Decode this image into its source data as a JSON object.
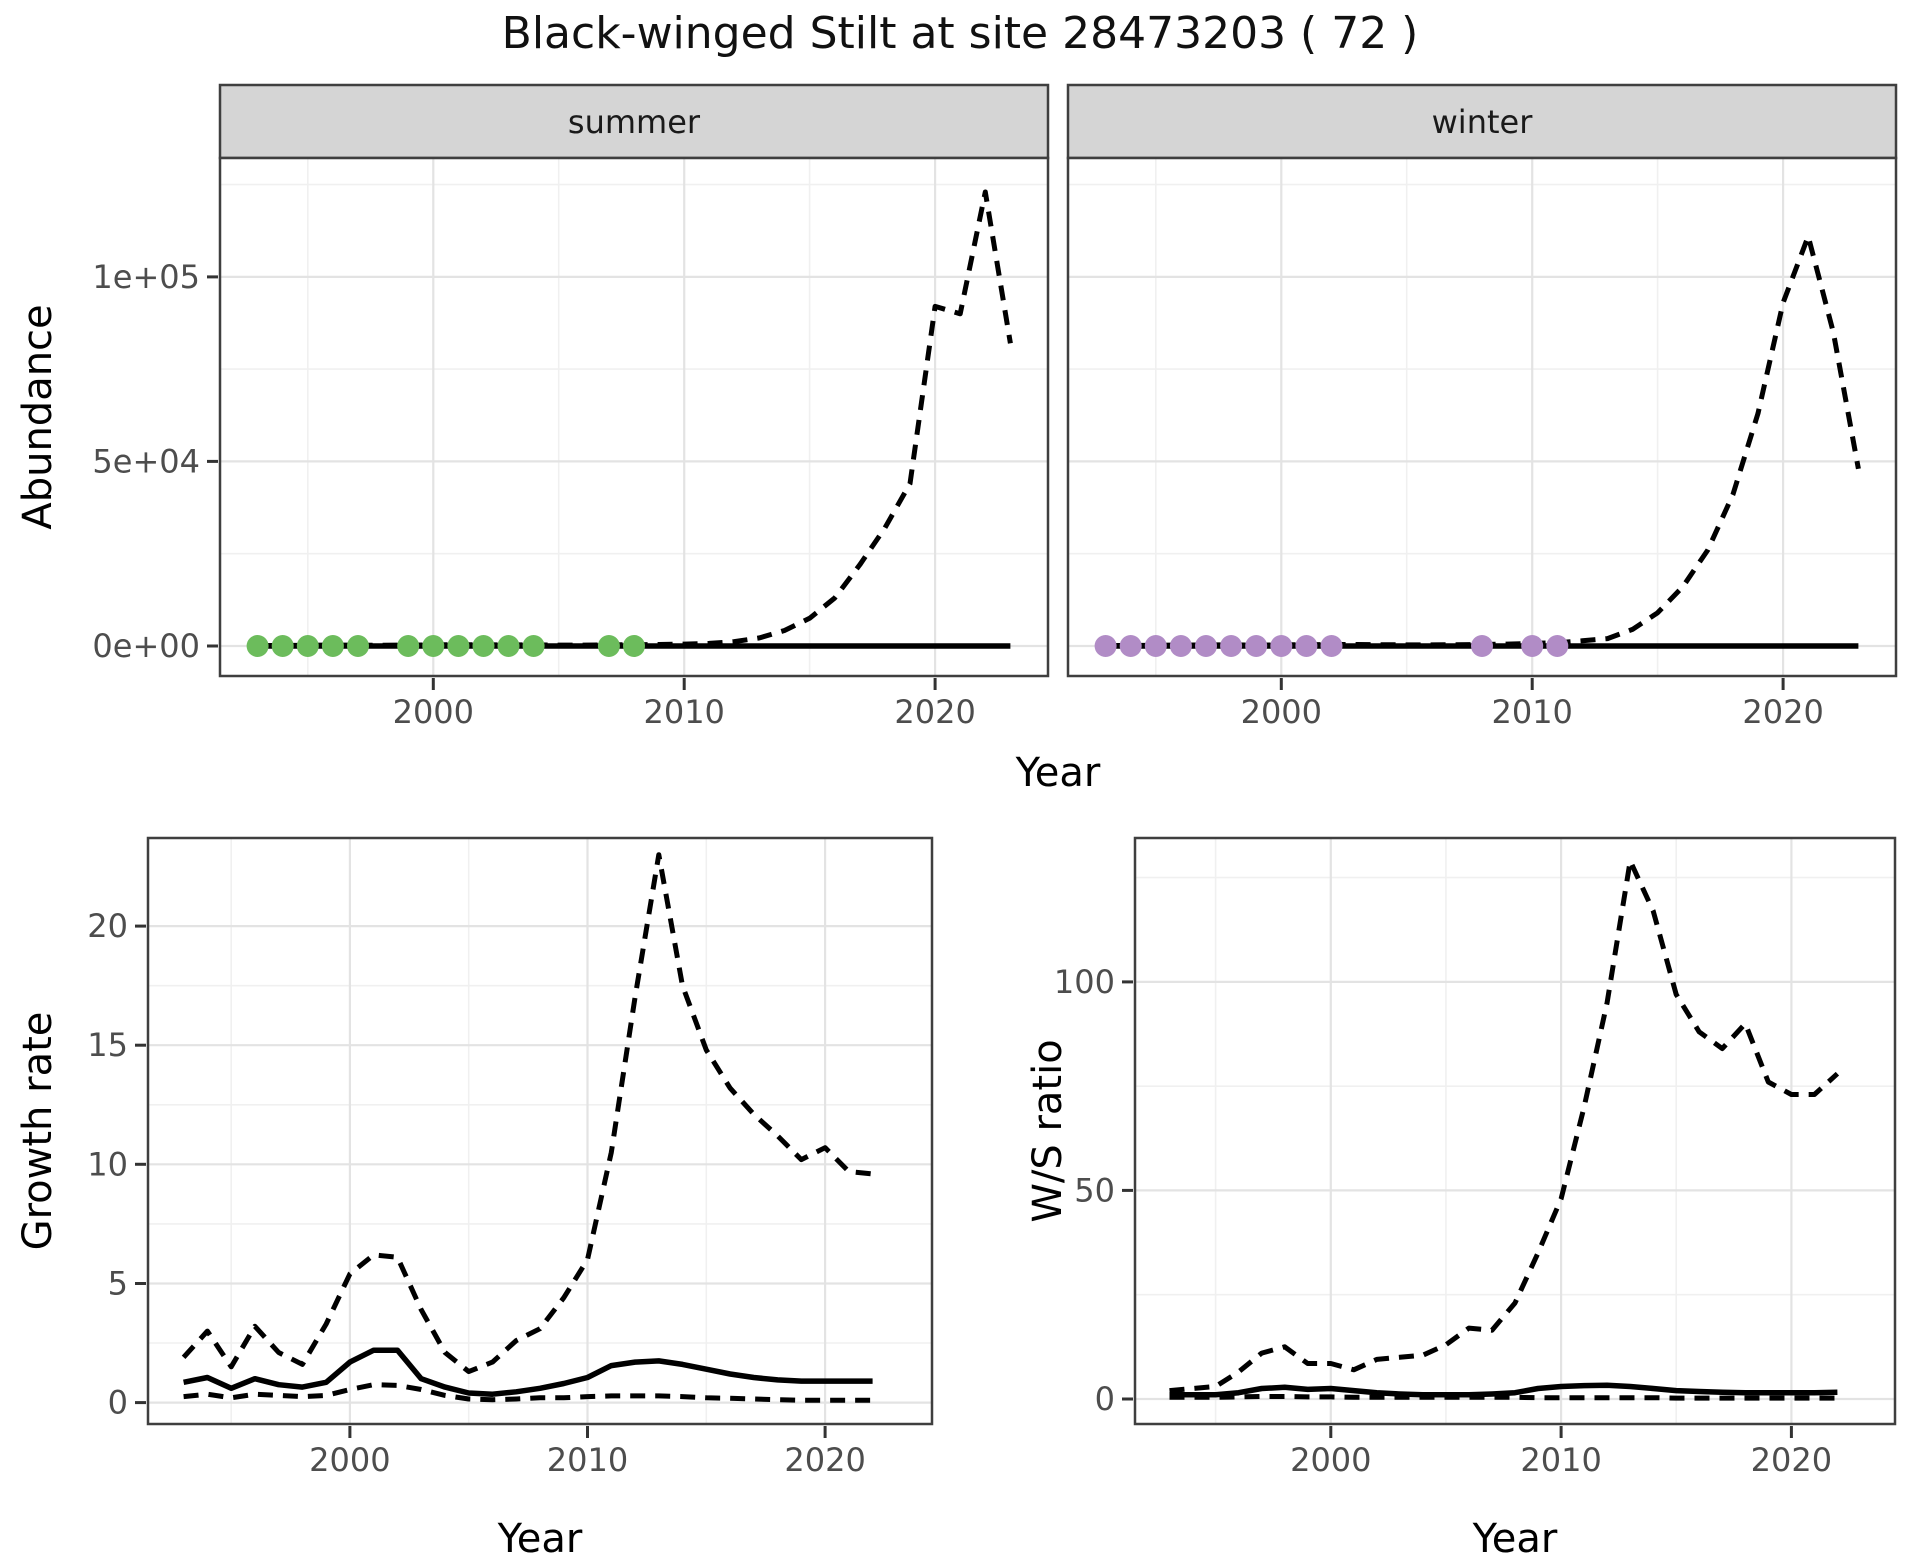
{
  "title": "Black-winged Stilt at site 28473203 ( 72 )",
  "chart_data": {
    "type": "line",
    "title": "Black-winged Stilt at site 28473203 ( 72 )",
    "xlabel": "Year",
    "facets": [
      "summer",
      "winter"
    ],
    "legend": "none",
    "grid": "on",
    "style": {
      "summer_point": "#6cbc5c",
      "winter_point": "#b18cc6",
      "line": "#000000",
      "strip_bg": "#d5d5d5",
      "panel_border": "#3f3f3f",
      "grid_major": "#e3e3e3",
      "grid_minor": "#f0f0f0",
      "tick_mark": "#333333",
      "tick_text": "#4d4d4d"
    },
    "panels": [
      {
        "id": "abundance-summer",
        "facet_label": "summer",
        "ylabel": "Abundance",
        "xlabel": "Year",
        "xlim": [
          1991.5,
          2024.5
        ],
        "ylim": [
          -8130,
          132200
        ],
        "xticks": {
          "major": [
            2000,
            2010,
            2020
          ],
          "labels": [
            "2000",
            "2010",
            "2020"
          ],
          "minor": [
            1995,
            2005,
            2015
          ]
        },
        "yticks": {
          "major": [
            0,
            50000,
            100000
          ],
          "labels": [
            "0e+00",
            "5e+04",
            "1e+05"
          ],
          "minor": [
            25000,
            75000,
            125000
          ]
        },
        "series": [
          {
            "name": "estimate",
            "style": "solid",
            "x": [
              1993,
              1994,
              1995,
              1996,
              1997,
              1998,
              1999,
              2000,
              2001,
              2002,
              2003,
              2004,
              2005,
              2006,
              2007,
              2008,
              2009,
              2010,
              2011,
              2012,
              2013,
              2014,
              2015,
              2016,
              2017,
              2018,
              2019,
              2020,
              2021,
              2022,
              2023
            ],
            "y": [
              0,
              0,
              0,
              0,
              0,
              0,
              0,
              0,
              0,
              0,
              0,
              0,
              0,
              0,
              0,
              0,
              0,
              0,
              0,
              0,
              0,
              0,
              0,
              0,
              0,
              0,
              0,
              0,
              0,
              0,
              0
            ]
          },
          {
            "name": "upper_ci",
            "style": "dashed",
            "x": [
              1993,
              1994,
              1995,
              1996,
              1997,
              1998,
              1999,
              2000,
              2001,
              2002,
              2003,
              2004,
              2005,
              2006,
              2007,
              2008,
              2009,
              2010,
              2011,
              2012,
              2013,
              2014,
              2015,
              2016,
              2017,
              2018,
              2019,
              2020,
              2021,
              2022,
              2023
            ],
            "y": [
              100,
              150,
              200,
              250,
              250,
              200,
              250,
              300,
              350,
              350,
              300,
              300,
              250,
              250,
              300,
              350,
              400,
              500,
              700,
              1200,
              2200,
              4200,
              7500,
              13000,
              22000,
              32000,
              44000,
              92000,
              90000,
              123000,
              82000
            ]
          }
        ],
        "points": {
          "name": "observed-count",
          "color": "#6cbc5c",
          "x": [
            1993,
            1994,
            1995,
            1996,
            1997,
            1999,
            2000,
            2001,
            2002,
            2003,
            2004,
            2007,
            2008
          ],
          "y": [
            0,
            0,
            0,
            0,
            0,
            0,
            0,
            0,
            0,
            0,
            0,
            0,
            0
          ]
        }
      },
      {
        "id": "abundance-winter",
        "facet_label": "winter",
        "ylabel": "",
        "xlabel": "Year",
        "xlim": [
          1991.5,
          2024.5
        ],
        "ylim": [
          -8130,
          132200
        ],
        "xticks": {
          "major": [
            2000,
            2010,
            2020
          ],
          "labels": [
            "2000",
            "2010",
            "2020"
          ],
          "minor": [
            1995,
            2005,
            2015
          ]
        },
        "yticks": {
          "major": [
            0,
            50000,
            100000
          ],
          "labels": [],
          "minor": [
            25000,
            75000,
            125000
          ]
        },
        "series": [
          {
            "name": "estimate",
            "style": "solid",
            "x": [
              1993,
              1994,
              1995,
              1996,
              1997,
              1998,
              1999,
              2000,
              2001,
              2002,
              2003,
              2004,
              2005,
              2006,
              2007,
              2008,
              2009,
              2010,
              2011,
              2012,
              2013,
              2014,
              2015,
              2016,
              2017,
              2018,
              2019,
              2020,
              2021,
              2022,
              2023
            ],
            "y": [
              0,
              0,
              0,
              0,
              0,
              0,
              0,
              0,
              0,
              0,
              0,
              0,
              0,
              0,
              0,
              0,
              0,
              0,
              0,
              0,
              0,
              0,
              0,
              0,
              0,
              0,
              0,
              0,
              0,
              0,
              0
            ]
          },
          {
            "name": "upper_ci",
            "style": "dashed",
            "x": [
              1993,
              1994,
              1995,
              1996,
              1997,
              1998,
              1999,
              2000,
              2001,
              2002,
              2003,
              2004,
              2005,
              2006,
              2007,
              2008,
              2009,
              2010,
              2011,
              2012,
              2013,
              2014,
              2015,
              2016,
              2017,
              2018,
              2019,
              2020,
              2021,
              2022,
              2023
            ],
            "y": [
              100,
              150,
              200,
              250,
              300,
              300,
              250,
              300,
              350,
              400,
              400,
              350,
              300,
              300,
              350,
              400,
              500,
              700,
              900,
              1400,
              2000,
              4500,
              9000,
              16000,
              26000,
              41000,
              63000,
              93000,
              111000,
              85000,
              48000
            ]
          }
        ],
        "points": {
          "name": "observed-count",
          "color": "#b18cc6",
          "x": [
            1993,
            1994,
            1995,
            1996,
            1997,
            1998,
            1999,
            2000,
            2001,
            2002,
            2008,
            2010,
            2011
          ],
          "y": [
            0,
            0,
            0,
            0,
            0,
            0,
            0,
            0,
            0,
            0,
            0,
            0,
            0
          ]
        }
      },
      {
        "id": "growth-rate",
        "facet_label": "",
        "ylabel": "Growth rate",
        "xlabel": "Year",
        "xlim": [
          1991.5,
          2024.5
        ],
        "ylim": [
          -0.9,
          23.7
        ],
        "xticks": {
          "major": [
            2000,
            2010,
            2020
          ],
          "labels": [
            "2000",
            "2010",
            "2020"
          ],
          "minor": [
            1995,
            2005,
            2015
          ]
        },
        "yticks": {
          "major": [
            0,
            5,
            10,
            15,
            20
          ],
          "labels": [
            "0",
            "5",
            "10",
            "15",
            "20"
          ],
          "minor": [
            2.5,
            7.5,
            12.5,
            17.5
          ]
        },
        "series": [
          {
            "name": "median",
            "style": "solid",
            "x": [
              1993,
              1994,
              1995,
              1996,
              1997,
              1998,
              1999,
              2000,
              2001,
              2002,
              2003,
              2004,
              2005,
              2006,
              2007,
              2008,
              2009,
              2010,
              2011,
              2012,
              2013,
              2014,
              2015,
              2016,
              2017,
              2018,
              2019,
              2020,
              2021,
              2022
            ],
            "y": [
              0.85,
              1.05,
              0.6,
              1.0,
              0.75,
              0.65,
              0.85,
              1.7,
              2.2,
              2.2,
              1.0,
              0.65,
              0.4,
              0.35,
              0.45,
              0.6,
              0.8,
              1.05,
              1.55,
              1.7,
              1.75,
              1.6,
              1.4,
              1.2,
              1.05,
              0.95,
              0.9,
              0.9,
              0.9,
              0.9
            ]
          },
          {
            "name": "upper_ci",
            "style": "dashed",
            "x": [
              1993,
              1994,
              1995,
              1996,
              1997,
              1998,
              1999,
              2000,
              2001,
              2002,
              2003,
              2004,
              2005,
              2006,
              2007,
              2008,
              2009,
              2010,
              2011,
              2012,
              2013,
              2014,
              2015,
              2016,
              2017,
              2018,
              2019,
              2020,
              2021,
              2022
            ],
            "y": [
              1.9,
              3.0,
              1.5,
              3.2,
              2.1,
              1.6,
              3.3,
              5.4,
              6.2,
              6.1,
              3.9,
              2.1,
              1.3,
              1.7,
              2.6,
              3.1,
              4.4,
              6.0,
              10.5,
              17.0,
              23.0,
              17.5,
              14.8,
              13.2,
              12.1,
              11.2,
              10.2,
              10.7,
              9.7,
              9.6
            ]
          },
          {
            "name": "lower_ci",
            "style": "dashed",
            "x": [
              1993,
              1994,
              1995,
              1996,
              1997,
              1998,
              1999,
              2000,
              2001,
              2002,
              2003,
              2004,
              2005,
              2006,
              2007,
              2008,
              2009,
              2010,
              2011,
              2012,
              2013,
              2014,
              2015,
              2016,
              2017,
              2018,
              2019,
              2020,
              2021,
              2022
            ],
            "y": [
              0.25,
              0.35,
              0.2,
              0.35,
              0.3,
              0.25,
              0.3,
              0.55,
              0.75,
              0.72,
              0.55,
              0.3,
              0.15,
              0.12,
              0.15,
              0.2,
              0.2,
              0.25,
              0.28,
              0.28,
              0.28,
              0.25,
              0.2,
              0.18,
              0.15,
              0.12,
              0.1,
              0.1,
              0.1,
              0.1
            ]
          }
        ]
      },
      {
        "id": "ws-ratio",
        "facet_label": "",
        "ylabel": "W/S ratio",
        "xlabel": "Year",
        "xlim": [
          1991.5,
          2024.5
        ],
        "ylim": [
          -6,
          134.5
        ],
        "xticks": {
          "major": [
            2000,
            2010,
            2020
          ],
          "labels": [
            "2000",
            "2010",
            "2020"
          ],
          "minor": [
            1995,
            2005,
            2015
          ]
        },
        "yticks": {
          "major": [
            0,
            50,
            100
          ],
          "labels": [
            "0",
            "50",
            "100"
          ],
          "minor": [
            25,
            75,
            125
          ]
        },
        "series": [
          {
            "name": "median",
            "style": "solid",
            "x": [
              1993,
              1994,
              1995,
              1996,
              1997,
              1998,
              1999,
              2000,
              2001,
              2002,
              2003,
              2004,
              2005,
              2006,
              2007,
              2008,
              2009,
              2010,
              2011,
              2012,
              2013,
              2014,
              2015,
              2016,
              2017,
              2018,
              2019,
              2020,
              2021,
              2022
            ],
            "y": [
              1,
              1,
              1,
              1.5,
              2.5,
              2.8,
              2.3,
              2.5,
              2,
              1.5,
              1.2,
              1,
              1,
              1,
              1.2,
              1.5,
              2.5,
              3,
              3.2,
              3.3,
              3,
              2.5,
              2,
              1.8,
              1.6,
              1.5,
              1.5,
              1.5,
              1.5,
              1.6
            ]
          },
          {
            "name": "upper_ci",
            "style": "dashed",
            "x": [
              1993,
              1994,
              1995,
              1996,
              1997,
              1998,
              1999,
              2000,
              2001,
              2002,
              2003,
              2004,
              2005,
              2006,
              2007,
              2008,
              2009,
              2010,
              2011,
              2012,
              2013,
              2014,
              2015,
              2016,
              2017,
              2018,
              2019,
              2020,
              2021,
              2022
            ],
            "y": [
              2,
              2.5,
              3,
              6.5,
              11,
              12.5,
              8.5,
              8.5,
              7,
              9.5,
              10,
              10.5,
              13,
              17,
              16.5,
              23,
              35,
              48,
              70,
              95,
              129,
              117,
              97,
              88,
              84,
              90,
              76,
              73,
              73,
              78
            ]
          },
          {
            "name": "lower_ci",
            "style": "dashed",
            "x": [
              1993,
              1994,
              1995,
              1996,
              1997,
              1998,
              1999,
              2000,
              2001,
              2002,
              2003,
              2004,
              2005,
              2006,
              2007,
              2008,
              2009,
              2010,
              2011,
              2012,
              2013,
              2014,
              2015,
              2016,
              2017,
              2018,
              2019,
              2020,
              2021,
              2022
            ],
            "y": [
              0.4,
              0.4,
              0.4,
              0.5,
              0.6,
              0.6,
              0.5,
              0.5,
              0.4,
              0.4,
              0.4,
              0.4,
              0.4,
              0.4,
              0.4,
              0.4,
              0.3,
              0.3,
              0.3,
              0.3,
              0.3,
              0.3,
              0.2,
              0.2,
              0.2,
              0.2,
              0.2,
              0.2,
              0.2,
              0.2
            ]
          }
        ]
      }
    ]
  }
}
